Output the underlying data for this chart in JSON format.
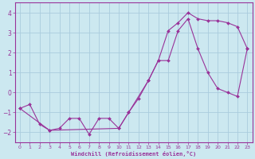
{
  "xlabel": "Windchill (Refroidissement éolien,°C)",
  "background_color": "#cce8f0",
  "grid_color": "#aaccdd",
  "line_color": "#993399",
  "marker_color": "#993399",
  "xlim": [
    -0.5,
    23.5
  ],
  "ylim": [
    -2.5,
    4.5
  ],
  "xticks": [
    0,
    1,
    2,
    3,
    4,
    5,
    6,
    7,
    8,
    9,
    10,
    11,
    12,
    13,
    14,
    15,
    16,
    17,
    18,
    19,
    20,
    21,
    22,
    23
  ],
  "yticks": [
    -2,
    -1,
    0,
    1,
    2,
    3,
    4
  ],
  "line1_x": [
    0,
    1,
    2,
    3,
    4,
    5,
    6,
    7,
    8,
    9,
    10,
    11,
    12,
    13,
    14,
    15,
    16,
    17,
    18,
    19,
    20,
    21,
    22,
    23
  ],
  "line1_y": [
    -0.8,
    -0.6,
    -1.6,
    -1.9,
    -1.8,
    -1.3,
    -1.3,
    -2.1,
    -1.3,
    -1.3,
    -1.8,
    -1.0,
    -0.3,
    0.6,
    1.6,
    3.1,
    3.5,
    4.0,
    3.7,
    3.6,
    3.6,
    3.5,
    3.3,
    2.2
  ],
  "line2_x": [
    0,
    3,
    10,
    11,
    13,
    14,
    15,
    16,
    17,
    18,
    19,
    20,
    21,
    22,
    23
  ],
  "line2_y": [
    -0.8,
    -1.9,
    -1.8,
    -1.0,
    0.6,
    1.6,
    1.6,
    3.1,
    3.7,
    2.2,
    1.0,
    0.2,
    0.0,
    -0.2,
    2.2
  ]
}
